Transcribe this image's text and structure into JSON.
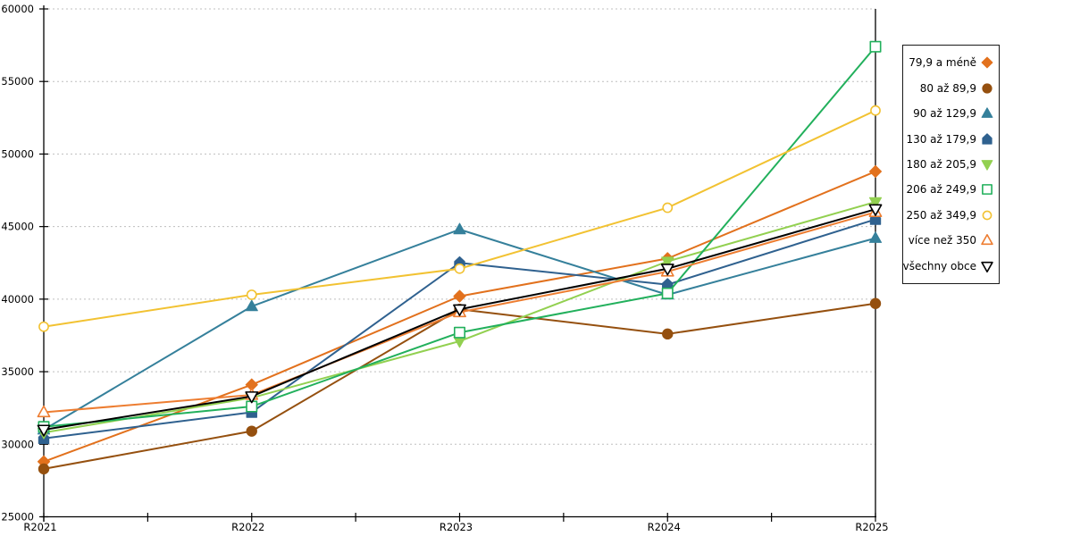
{
  "chart_data": {
    "type": "line",
    "title": "",
    "categories": [
      "R2021",
      "R2022",
      "R2023",
      "R2024",
      "R2025"
    ],
    "xlabel": "",
    "ylabel": "",
    "ylim": [
      25000,
      60000
    ],
    "ytick_step": 5000,
    "ytick_labels": [
      "25000",
      "30000",
      "35000",
      "40000",
      "45000",
      "50000",
      "55000",
      "60000"
    ],
    "grid": "horizontal-dashed",
    "legend_position": "right-outside",
    "series": [
      {
        "name": "79,9 a méně",
        "marker": "diamond",
        "fill": "filled",
        "color": "#E2711D",
        "values": [
          28800,
          34100,
          40200,
          42800,
          48800
        ]
      },
      {
        "name": "80 až 89,9",
        "marker": "circle",
        "fill": "filled",
        "color": "#95500F",
        "values": [
          28300,
          30900,
          39300,
          37600,
          39700
        ]
      },
      {
        "name": "90 až 129,9",
        "marker": "triangle-up",
        "fill": "filled",
        "color": "#35809B",
        "values": [
          31000,
          39500,
          44800,
          40300,
          44200
        ]
      },
      {
        "name": "130 až 179,9",
        "marker": "pentagon",
        "fill": "filled",
        "color": "#2F618F",
        "values": [
          30400,
          32200,
          42500,
          41000,
          45500
        ]
      },
      {
        "name": "180 až 205,9",
        "marker": "triangle-down",
        "fill": "filled",
        "color": "#92D050",
        "values": [
          30800,
          33200,
          37100,
          42600,
          46700
        ]
      },
      {
        "name": "206 až 249,9",
        "marker": "square",
        "fill": "open",
        "color": "#22B05C",
        "values": [
          31200,
          32600,
          37700,
          40400,
          57400
        ]
      },
      {
        "name": "250 až 349,9",
        "marker": "circle",
        "fill": "open",
        "color": "#F2C232",
        "values": [
          38100,
          40300,
          42100,
          46300,
          53000
        ]
      },
      {
        "name": "více než 350",
        "marker": "triangle-up",
        "fill": "open",
        "color": "#ED7D31",
        "values": [
          32200,
          33400,
          39100,
          41900,
          46000
        ]
      },
      {
        "name": "všechny obce",
        "marker": "triangle-down",
        "fill": "open",
        "color": "#000000",
        "values": [
          31000,
          33300,
          39300,
          42100,
          46200
        ]
      }
    ],
    "colors": {
      "background": "#FFFFFF",
      "gridline": "#BFBFBF",
      "axis": "#000000",
      "legend_border": "#1A1A1A"
    }
  }
}
